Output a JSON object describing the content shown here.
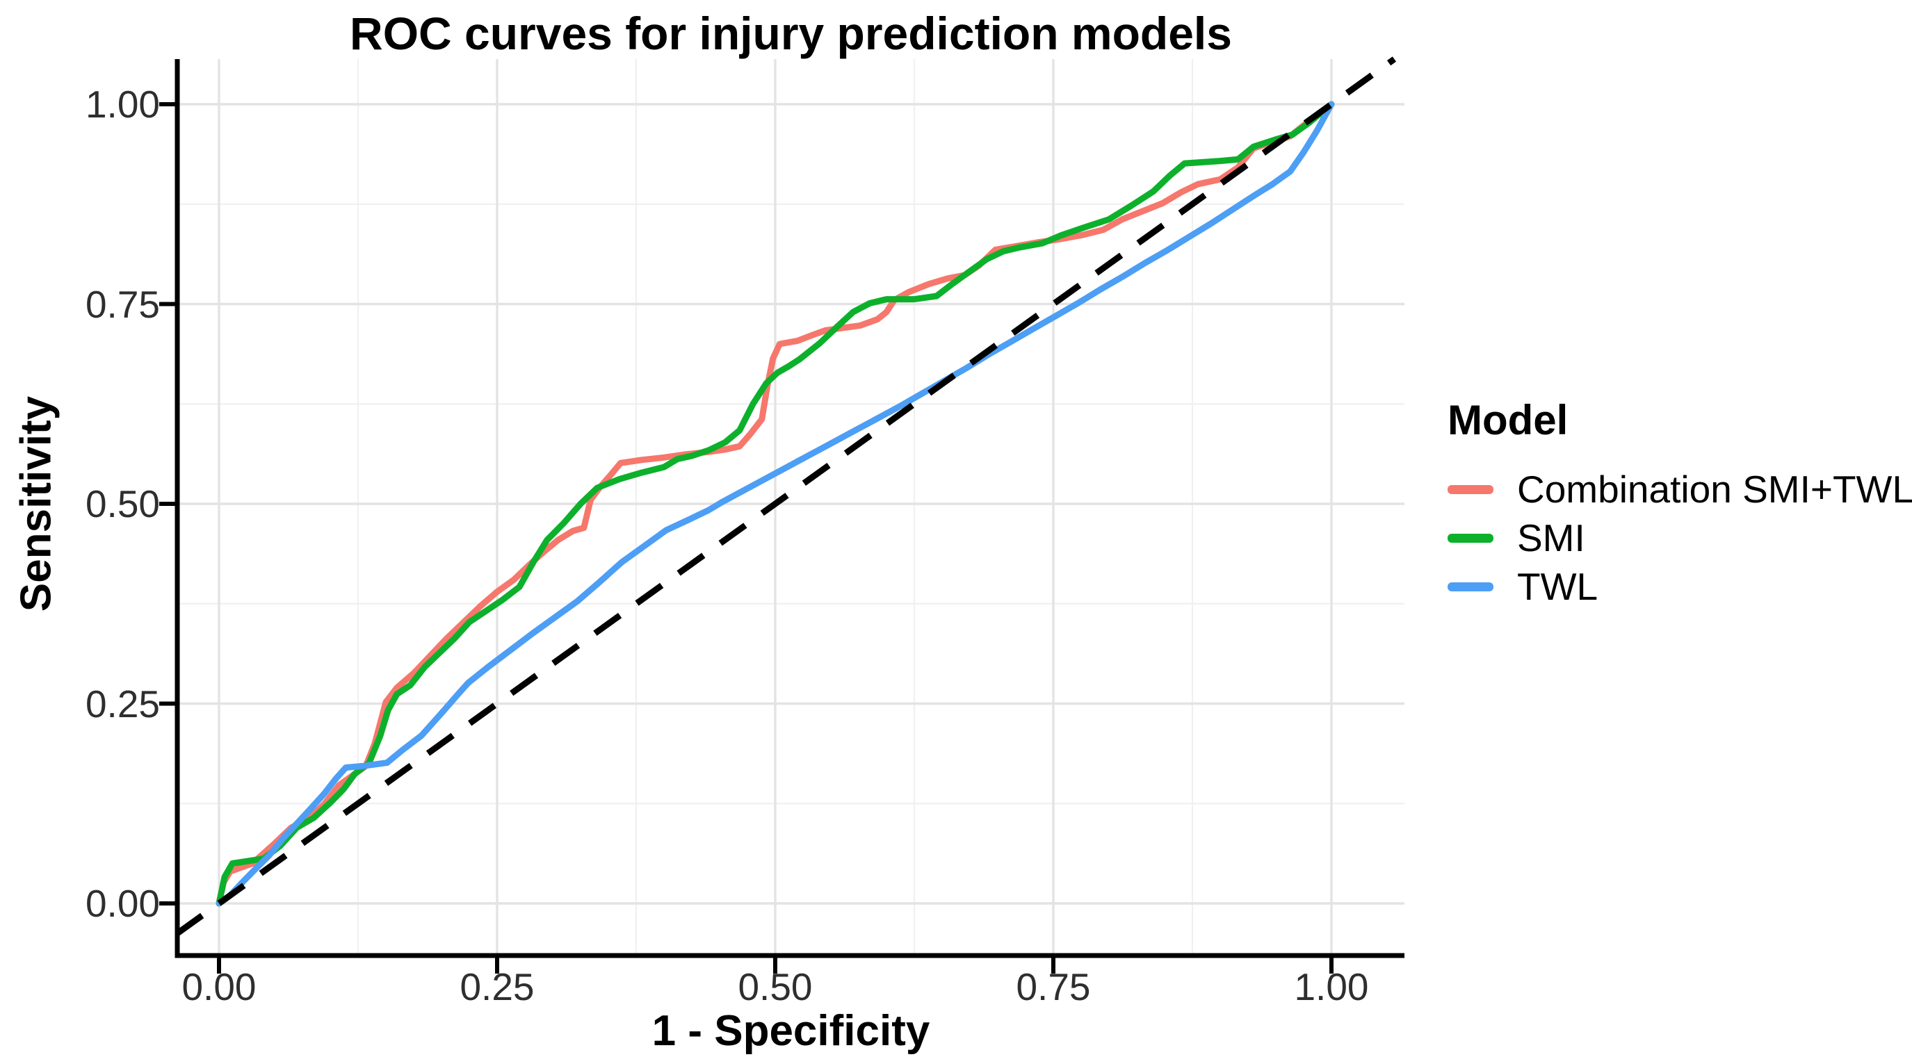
{
  "chart_data": {
    "type": "line",
    "title": "ROC curves for injury prediction models",
    "xlabel": "1 - Specificity",
    "ylabel": "Sensitivity",
    "xlim": [
      0,
      1
    ],
    "ylim": [
      0,
      1
    ],
    "legend_position": "right",
    "legend_title": "Model",
    "background": "#ffffff",
    "grid": {
      "major": [
        0,
        0.25,
        0.5,
        0.75,
        1.0
      ],
      "minor": [
        0.125,
        0.375,
        0.625,
        0.875
      ],
      "major_color": "#e3e3e3",
      "minor_color": "#f0f0f0"
    },
    "xticks": [
      {
        "v": 0,
        "label": "0.00"
      },
      {
        "v": 0.25,
        "label": "0.25"
      },
      {
        "v": 0.5,
        "label": "0.50"
      },
      {
        "v": 0.75,
        "label": "0.75"
      },
      {
        "v": 1.0,
        "label": "1.00"
      }
    ],
    "yticks": [
      {
        "v": 0,
        "label": "0.00"
      },
      {
        "v": 0.25,
        "label": "0.25"
      },
      {
        "v": 0.5,
        "label": "0.50"
      },
      {
        "v": 0.75,
        "label": "0.75"
      },
      {
        "v": 1.0,
        "label": "1.00"
      }
    ],
    "reference_line": {
      "style": "dashed",
      "color": "#000000",
      "from": [
        0,
        0
      ],
      "to": [
        1,
        1
      ]
    },
    "series": [
      {
        "name": "Combination SMI+TWL",
        "color": "#F6776C",
        "points": [
          [
            0,
            0
          ],
          [
            0.004,
            0.026
          ],
          [
            0.01,
            0.04
          ],
          [
            0.03,
            0.05
          ],
          [
            0.05,
            0.075
          ],
          [
            0.065,
            0.095
          ],
          [
            0.08,
            0.105
          ],
          [
            0.095,
            0.125
          ],
          [
            0.108,
            0.148
          ],
          [
            0.12,
            0.16
          ],
          [
            0.132,
            0.172
          ],
          [
            0.14,
            0.2
          ],
          [
            0.15,
            0.252
          ],
          [
            0.16,
            0.27
          ],
          [
            0.175,
            0.288
          ],
          [
            0.19,
            0.31
          ],
          [
            0.205,
            0.332
          ],
          [
            0.22,
            0.352
          ],
          [
            0.235,
            0.372
          ],
          [
            0.25,
            0.39
          ],
          [
            0.265,
            0.405
          ],
          [
            0.28,
            0.425
          ],
          [
            0.292,
            0.44
          ],
          [
            0.305,
            0.455
          ],
          [
            0.318,
            0.466
          ],
          [
            0.328,
            0.47
          ],
          [
            0.334,
            0.505
          ],
          [
            0.342,
            0.52
          ],
          [
            0.352,
            0.536
          ],
          [
            0.361,
            0.551
          ],
          [
            0.38,
            0.555
          ],
          [
            0.4,
            0.558
          ],
          [
            0.42,
            0.562
          ],
          [
            0.44,
            0.565
          ],
          [
            0.455,
            0.568
          ],
          [
            0.468,
            0.572
          ],
          [
            0.478,
            0.588
          ],
          [
            0.488,
            0.606
          ],
          [
            0.493,
            0.648
          ],
          [
            0.498,
            0.682
          ],
          [
            0.504,
            0.7
          ],
          [
            0.52,
            0.704
          ],
          [
            0.535,
            0.712
          ],
          [
            0.545,
            0.717
          ],
          [
            0.56,
            0.72
          ],
          [
            0.576,
            0.723
          ],
          [
            0.592,
            0.731
          ],
          [
            0.6,
            0.74
          ],
          [
            0.607,
            0.755
          ],
          [
            0.62,
            0.765
          ],
          [
            0.638,
            0.775
          ],
          [
            0.655,
            0.782
          ],
          [
            0.67,
            0.786
          ],
          [
            0.683,
            0.798
          ],
          [
            0.698,
            0.818
          ],
          [
            0.715,
            0.822
          ],
          [
            0.735,
            0.827
          ],
          [
            0.755,
            0.831
          ],
          [
            0.775,
            0.836
          ],
          [
            0.795,
            0.843
          ],
          [
            0.812,
            0.856
          ],
          [
            0.83,
            0.866
          ],
          [
            0.848,
            0.876
          ],
          [
            0.865,
            0.89
          ],
          [
            0.88,
            0.9
          ],
          [
            0.9,
            0.906
          ],
          [
            0.916,
            0.921
          ],
          [
            0.93,
            0.945
          ],
          [
            0.948,
            0.953
          ],
          [
            0.963,
            0.96
          ],
          [
            0.978,
            0.977
          ],
          [
            1,
            1
          ]
        ]
      },
      {
        "name": "SMI",
        "color": "#0DB02B",
        "points": [
          [
            0,
            0
          ],
          [
            0.005,
            0.033
          ],
          [
            0.012,
            0.05
          ],
          [
            0.04,
            0.056
          ],
          [
            0.055,
            0.072
          ],
          [
            0.07,
            0.095
          ],
          [
            0.085,
            0.107
          ],
          [
            0.1,
            0.126
          ],
          [
            0.112,
            0.143
          ],
          [
            0.122,
            0.162
          ],
          [
            0.135,
            0.176
          ],
          [
            0.145,
            0.21
          ],
          [
            0.152,
            0.242
          ],
          [
            0.16,
            0.262
          ],
          [
            0.172,
            0.273
          ],
          [
            0.185,
            0.296
          ],
          [
            0.2,
            0.316
          ],
          [
            0.212,
            0.332
          ],
          [
            0.225,
            0.352
          ],
          [
            0.24,
            0.366
          ],
          [
            0.255,
            0.38
          ],
          [
            0.27,
            0.396
          ],
          [
            0.283,
            0.428
          ],
          [
            0.295,
            0.455
          ],
          [
            0.31,
            0.476
          ],
          [
            0.325,
            0.5
          ],
          [
            0.34,
            0.52
          ],
          [
            0.36,
            0.531
          ],
          [
            0.38,
            0.539
          ],
          [
            0.4,
            0.546
          ],
          [
            0.412,
            0.556
          ],
          [
            0.425,
            0.56
          ],
          [
            0.44,
            0.567
          ],
          [
            0.455,
            0.577
          ],
          [
            0.468,
            0.592
          ],
          [
            0.48,
            0.625
          ],
          [
            0.492,
            0.651
          ],
          [
            0.502,
            0.664
          ],
          [
            0.512,
            0.672
          ],
          [
            0.522,
            0.681
          ],
          [
            0.54,
            0.701
          ],
          [
            0.556,
            0.722
          ],
          [
            0.57,
            0.74
          ],
          [
            0.585,
            0.751
          ],
          [
            0.6,
            0.756
          ],
          [
            0.625,
            0.756
          ],
          [
            0.645,
            0.76
          ],
          [
            0.66,
            0.776
          ],
          [
            0.675,
            0.791
          ],
          [
            0.69,
            0.806
          ],
          [
            0.705,
            0.816
          ],
          [
            0.72,
            0.821
          ],
          [
            0.74,
            0.826
          ],
          [
            0.757,
            0.836
          ],
          [
            0.778,
            0.846
          ],
          [
            0.8,
            0.856
          ],
          [
            0.82,
            0.873
          ],
          [
            0.84,
            0.891
          ],
          [
            0.855,
            0.911
          ],
          [
            0.868,
            0.926
          ],
          [
            0.9,
            0.929
          ],
          [
            0.916,
            0.931
          ],
          [
            0.93,
            0.947
          ],
          [
            0.95,
            0.956
          ],
          [
            0.965,
            0.962
          ],
          [
            0.98,
            0.977
          ],
          [
            1,
            1
          ]
        ]
      },
      {
        "name": "TWL",
        "color": "#4D9EF5",
        "points": [
          [
            0,
            0
          ],
          [
            0.01,
            0.01
          ],
          [
            0.02,
            0.025
          ],
          [
            0.032,
            0.042
          ],
          [
            0.045,
            0.06
          ],
          [
            0.058,
            0.082
          ],
          [
            0.07,
            0.1
          ],
          [
            0.082,
            0.118
          ],
          [
            0.095,
            0.138
          ],
          [
            0.105,
            0.156
          ],
          [
            0.114,
            0.17
          ],
          [
            0.13,
            0.172
          ],
          [
            0.151,
            0.176
          ],
          [
            0.165,
            0.192
          ],
          [
            0.182,
            0.21
          ],
          [
            0.2,
            0.238
          ],
          [
            0.215,
            0.262
          ],
          [
            0.224,
            0.276
          ],
          [
            0.242,
            0.296
          ],
          [
            0.262,
            0.317
          ],
          [
            0.282,
            0.338
          ],
          [
            0.302,
            0.358
          ],
          [
            0.322,
            0.378
          ],
          [
            0.342,
            0.402
          ],
          [
            0.362,
            0.427
          ],
          [
            0.382,
            0.447
          ],
          [
            0.402,
            0.467
          ],
          [
            0.422,
            0.48
          ],
          [
            0.44,
            0.492
          ],
          [
            0.452,
            0.502
          ],
          [
            0.472,
            0.517
          ],
          [
            0.492,
            0.532
          ],
          [
            0.512,
            0.547
          ],
          [
            0.532,
            0.562
          ],
          [
            0.552,
            0.577
          ],
          [
            0.572,
            0.592
          ],
          [
            0.592,
            0.607
          ],
          [
            0.612,
            0.622
          ],
          [
            0.632,
            0.638
          ],
          [
            0.652,
            0.654
          ],
          [
            0.672,
            0.67
          ],
          [
            0.692,
            0.687
          ],
          [
            0.712,
            0.703
          ],
          [
            0.732,
            0.719
          ],
          [
            0.752,
            0.735
          ],
          [
            0.772,
            0.751
          ],
          [
            0.792,
            0.768
          ],
          [
            0.812,
            0.784
          ],
          [
            0.832,
            0.801
          ],
          [
            0.852,
            0.817
          ],
          [
            0.872,
            0.834
          ],
          [
            0.892,
            0.851
          ],
          [
            0.912,
            0.869
          ],
          [
            0.932,
            0.887
          ],
          [
            0.947,
            0.9
          ],
          [
            0.963,
            0.916
          ],
          [
            0.975,
            0.94
          ],
          [
            0.987,
            0.967
          ],
          [
            1,
            1
          ]
        ]
      }
    ]
  }
}
